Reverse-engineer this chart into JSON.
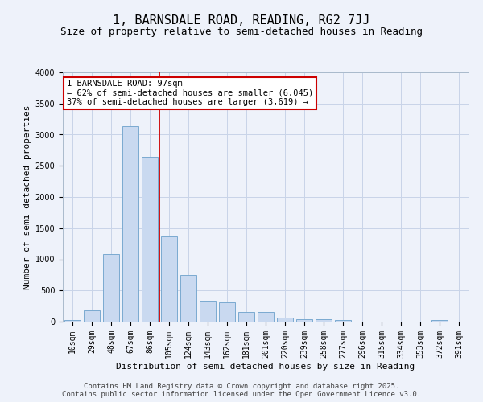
{
  "title": "1, BARNSDALE ROAD, READING, RG2 7JJ",
  "subtitle": "Size of property relative to semi-detached houses in Reading",
  "xlabel": "Distribution of semi-detached houses by size in Reading",
  "ylabel": "Number of semi-detached properties",
  "categories": [
    "10sqm",
    "29sqm",
    "48sqm",
    "67sqm",
    "86sqm",
    "105sqm",
    "124sqm",
    "143sqm",
    "162sqm",
    "181sqm",
    "201sqm",
    "220sqm",
    "239sqm",
    "258sqm",
    "277sqm",
    "296sqm",
    "315sqm",
    "334sqm",
    "353sqm",
    "372sqm",
    "391sqm"
  ],
  "values": [
    20,
    180,
    1080,
    3130,
    2640,
    1370,
    750,
    320,
    310,
    160,
    150,
    70,
    40,
    40,
    20,
    0,
    0,
    0,
    0,
    20,
    0
  ],
  "bar_color": "#c9d9f0",
  "bar_edge_color": "#7aaad0",
  "red_line_x": 4.5,
  "annotation_title": "1 BARNSDALE ROAD: 97sqm",
  "annotation_line1": "← 62% of semi-detached houses are smaller (6,045)",
  "annotation_line2": "37% of semi-detached houses are larger (3,619) →",
  "annotation_box_color": "#ffffff",
  "annotation_box_edge": "#cc0000",
  "red_line_color": "#cc0000",
  "grid_color": "#c8d4e8",
  "background_color": "#eef2fa",
  "ylim": [
    0,
    4000
  ],
  "yticks": [
    0,
    500,
    1000,
    1500,
    2000,
    2500,
    3000,
    3500,
    4000
  ],
  "footer_line1": "Contains HM Land Registry data © Crown copyright and database right 2025.",
  "footer_line2": "Contains public sector information licensed under the Open Government Licence v3.0.",
  "title_fontsize": 11,
  "subtitle_fontsize": 9,
  "axis_label_fontsize": 8,
  "tick_fontsize": 7,
  "annotation_fontsize": 7.5,
  "footer_fontsize": 6.5
}
